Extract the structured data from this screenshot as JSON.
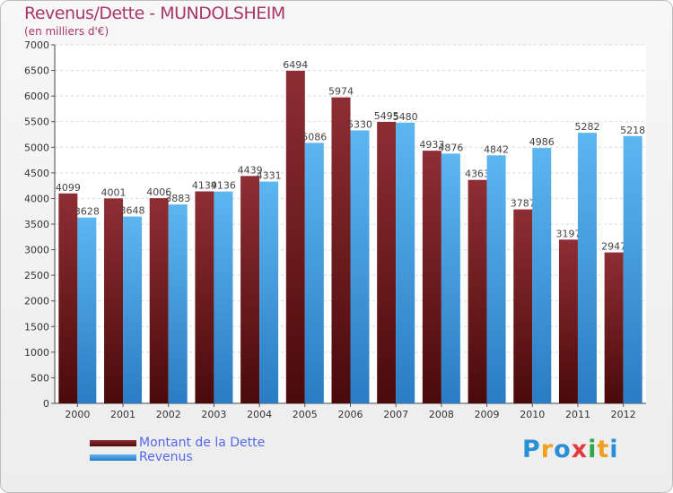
{
  "logo": {
    "text": "Proxiti",
    "letters": [
      {
        "ch": "P",
        "color": "#2a8fd6"
      },
      {
        "ch": "r",
        "color": "#f0a020"
      },
      {
        "ch": "o",
        "color": "#2a8fd6"
      },
      {
        "ch": "x",
        "color": "#e23b3b"
      },
      {
        "ch": "i",
        "color": "#2ea84a"
      },
      {
        "ch": "t",
        "color": "#f0a020"
      },
      {
        "ch": "i",
        "color": "#2a8fd6"
      }
    ]
  },
  "colors": {
    "dette": "#7a1d1d",
    "revenus": "#3f9de0",
    "title": "#a8366a",
    "legend_text": "#5566ee"
  },
  "chart_data": {
    "type": "bar",
    "title": "Revenus/Dette - MUNDOLSHEIM",
    "subtitle": "(en milliers d'€)",
    "categories": [
      "2000",
      "2001",
      "2002",
      "2003",
      "2004",
      "2005",
      "2006",
      "2007",
      "2008",
      "2009",
      "2010",
      "2011",
      "2012"
    ],
    "series": [
      {
        "name": "Montant de la Dette",
        "values": [
          4099,
          4001,
          4006,
          4139,
          4439,
          6494,
          5974,
          5495,
          4933,
          4363,
          3787,
          3197,
          2947
        ]
      },
      {
        "name": "Revenus",
        "values": [
          3628,
          3648,
          3883,
          4136,
          4331,
          5086,
          5330,
          5480,
          4876,
          4842,
          4986,
          5282,
          5218
        ]
      }
    ],
    "ylim": [
      0,
      7000
    ],
    "yticks": [
      0,
      500,
      1000,
      1500,
      2000,
      2500,
      3000,
      3500,
      4000,
      4500,
      5000,
      5500,
      6000,
      6500,
      7000
    ],
    "grid": true,
    "legend_position": "bottom-left"
  }
}
